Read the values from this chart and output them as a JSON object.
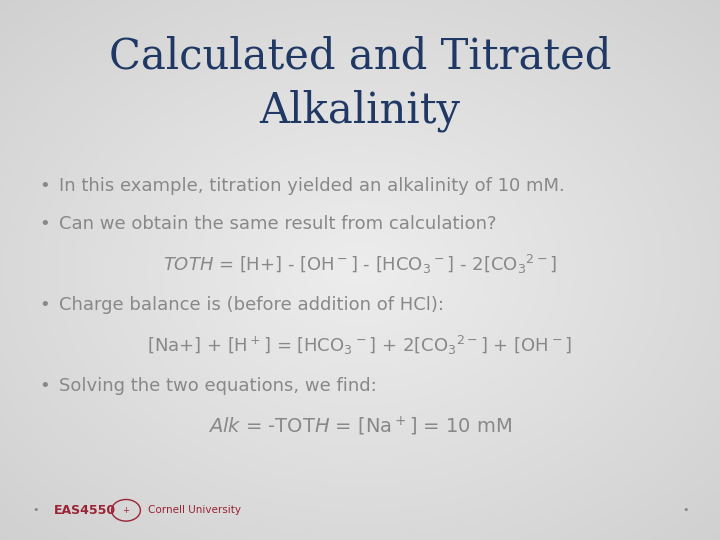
{
  "title_line1": "Calculated and Titrated",
  "title_line2": "Alkalinity",
  "title_color": "#1F3864",
  "title_fontsize": 30,
  "body_color": "#888888",
  "body_fontsize": 13,
  "background_color": "#e8e8e8",
  "bullet1": "In this example, titration yielded an alkalinity of 10 mM.",
  "bullet2": "Can we obtain the same result from calculation?",
  "bullet3": "Charge balance is (before addition of HCl):",
  "bullet4": "Solving the two equations, we find:",
  "footer_text": "EAS4550",
  "footer_color": "#9B2335",
  "footer_fontsize": 9,
  "dot_color": "#888888",
  "cornell_color": "#9B2335"
}
